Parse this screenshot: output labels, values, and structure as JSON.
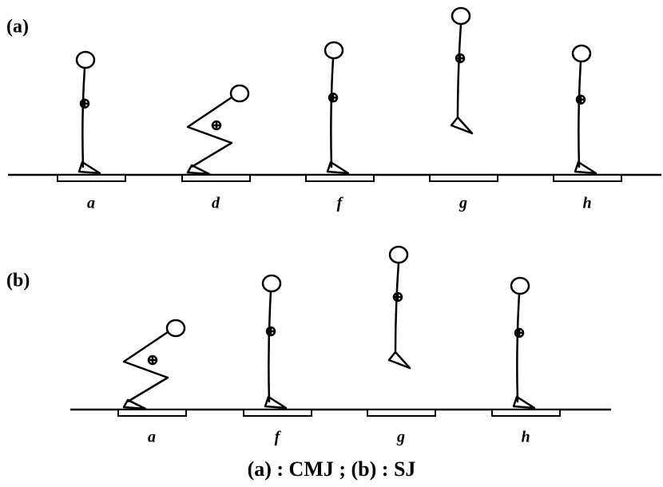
{
  "panels": [
    {
      "label": "(a)",
      "figures": [
        "a",
        "d",
        "f",
        "g",
        "h"
      ]
    },
    {
      "label": "(b)",
      "figures": [
        "a",
        "f",
        "g",
        "h"
      ]
    }
  ],
  "caption": "(a) : CMJ ; (b) : SJ"
}
